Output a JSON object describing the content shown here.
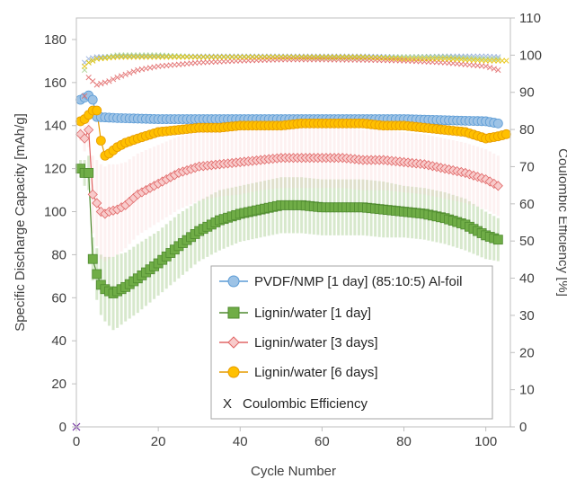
{
  "chart_data": {
    "type": "scatter",
    "xlabel": "Cycle Number",
    "ylabel": "Specific Discharge Capacity [mAh/g]",
    "y2label": "Coulombic Efficiency [%]",
    "xlim": [
      0,
      106
    ],
    "ylim": [
      0,
      190
    ],
    "y2lim": [
      0,
      110
    ],
    "x_ticks": [
      "0",
      "20",
      "40",
      "60",
      "80",
      "100"
    ],
    "x_tick_values": [
      0,
      20,
      40,
      60,
      80,
      100
    ],
    "y_ticks": [
      "0",
      "20",
      "40",
      "60",
      "80",
      "100",
      "120",
      "140",
      "160",
      "180"
    ],
    "y_tick_values": [
      0,
      20,
      40,
      60,
      80,
      100,
      120,
      140,
      160,
      180
    ],
    "y2_ticks": [
      "0",
      "10",
      "20",
      "30",
      "40",
      "50",
      "60",
      "70",
      "80",
      "90",
      "100",
      "110"
    ],
    "y2_tick_values": [
      0,
      10,
      20,
      30,
      40,
      50,
      60,
      70,
      80,
      90,
      100,
      110
    ],
    "legend_position": "bottom-right",
    "series": [
      {
        "name": "PVDF/NMP [1 day] (85:10:5) Al-foil",
        "marker": "circle",
        "color": "#9DC3E6",
        "edge": "#5B9BD5",
        "x": [
          1,
          2,
          3,
          4,
          5,
          10,
          20,
          30,
          40,
          50,
          60,
          70,
          80,
          90,
          100,
          103
        ],
        "y": [
          152,
          153,
          154,
          152,
          144,
          143.5,
          143,
          143,
          143,
          143,
          143,
          143,
          143,
          142.5,
          142,
          141
        ]
      },
      {
        "name": "Lignin/water [1 day]",
        "marker": "square",
        "color": "#70AD47",
        "edge": "#4E8A2E",
        "x": [
          1,
          2,
          3,
          4,
          5,
          6,
          7,
          8,
          9,
          10,
          12,
          15,
          20,
          25,
          30,
          35,
          40,
          45,
          50,
          55,
          60,
          65,
          70,
          75,
          80,
          85,
          90,
          95,
          100,
          103
        ],
        "y": [
          120,
          118,
          118,
          78,
          71,
          66,
          64,
          63,
          62,
          63,
          65,
          69,
          76,
          84,
          91,
          96,
          99,
          101,
          103,
          103,
          102,
          102,
          102,
          101,
          100,
          99,
          97,
          94,
          89,
          87
        ],
        "error": [
          4,
          6,
          8,
          10,
          12,
          14,
          15,
          16,
          17,
          17,
          16,
          16,
          15,
          15,
          14,
          14,
          13,
          13,
          13,
          13,
          13,
          13,
          13,
          13,
          12,
          12,
          12,
          12,
          11,
          10
        ]
      },
      {
        "name": "Lignin/water [3 days]",
        "marker": "diamond",
        "color": "#F8CBCB",
        "edge": "#E06666",
        "x": [
          1,
          2,
          3,
          4,
          5,
          6,
          7,
          8,
          10,
          12,
          15,
          20,
          25,
          30,
          35,
          40,
          45,
          50,
          55,
          60,
          65,
          70,
          75,
          80,
          85,
          90,
          95,
          100,
          103
        ],
        "y": [
          136,
          134,
          138,
          108,
          104,
          100,
          99,
          100,
          101,
          103,
          108,
          113,
          118,
          121,
          122,
          123,
          124,
          125,
          125,
          125,
          125,
          124,
          124,
          123,
          122,
          120,
          118,
          115,
          112
        ],
        "error": [
          3,
          6,
          8,
          18,
          20,
          22,
          22,
          22,
          21,
          20,
          19,
          18,
          17,
          16,
          15,
          15,
          14,
          14,
          14,
          14,
          14,
          14,
          14,
          14,
          14,
          14,
          14,
          14,
          14
        ]
      },
      {
        "name": "Lignin/water [6 days]",
        "marker": "circle",
        "color": "#FFC000",
        "edge": "#E69B00",
        "x": [
          1,
          2,
          3,
          4,
          5,
          6,
          7,
          8,
          10,
          12,
          15,
          20,
          25,
          30,
          35,
          40,
          45,
          50,
          55,
          60,
          65,
          70,
          75,
          80,
          85,
          90,
          95,
          100,
          103,
          105
        ],
        "y": [
          142,
          143,
          145,
          147,
          147,
          133,
          126,
          127,
          130,
          132,
          134,
          137,
          138,
          139,
          139,
          140,
          140,
          140,
          141,
          141,
          141,
          141,
          140,
          140,
          139,
          138,
          137,
          134,
          135,
          136
        ],
        "error": [
          2,
          2,
          2,
          2,
          2,
          2,
          2,
          2,
          2,
          2,
          2,
          2,
          2,
          2,
          2,
          2,
          2,
          2,
          2,
          2,
          2,
          2,
          2,
          2,
          2,
          2,
          2,
          2,
          2,
          2
        ]
      },
      {
        "name": "Coulombic Efficiency",
        "marker": "x",
        "axis": "right",
        "color": "#7F7F7F",
        "sub_series": [
          {
            "color": "#8FAADC",
            "x": [
              2,
              3,
              5,
              10,
              20,
              30,
              40,
              50,
              60,
              70,
              80,
              90,
              100,
              103
            ],
            "y": [
              98,
              99,
              99.5,
              99.7,
              99.7,
              99.7,
              99.7,
              99.7,
              99.7,
              99.7,
              99.5,
              99.7,
              99.7,
              99.5
            ]
          },
          {
            "color": "#A9D18E",
            "x": [
              2,
              3,
              5,
              10,
              20,
              30,
              40,
              50,
              60,
              70,
              80,
              90,
              100,
              103
            ],
            "y": [
              96,
              98,
              99,
              100,
              100,
              99.5,
              99.5,
              99.5,
              99.3,
              99.3,
              99.5,
              99.5,
              99,
              99
            ]
          },
          {
            "color": "#E06666",
            "x": [
              2,
              3,
              5,
              8,
              10,
              15,
              20,
              30,
              40,
              50,
              60,
              70,
              80,
              90,
              100,
              103
            ],
            "y": [
              89,
              94,
              92,
              93,
              94,
              96,
              97,
              98,
              98.5,
              98.8,
              98.8,
              98.7,
              98.5,
              98,
              97,
              96
            ]
          },
          {
            "color": "#E6C200",
            "x": [
              2,
              3,
              5,
              10,
              20,
              30,
              40,
              50,
              60,
              70,
              80,
              90,
              100,
              105
            ],
            "y": [
              97,
              98,
              99,
              99.5,
              99.5,
              99.5,
              99.5,
              99.5,
              99.5,
              99.5,
              99,
              99,
              98.5,
              98.5
            ]
          }
        ]
      }
    ]
  }
}
